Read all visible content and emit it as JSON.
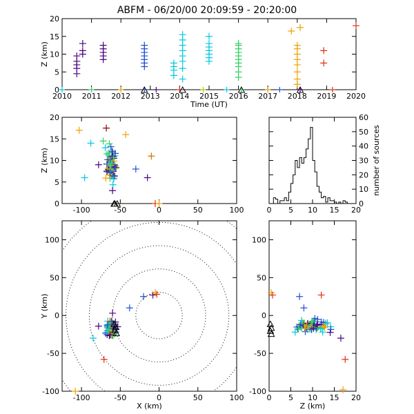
{
  "title": "ABFM - 06/20/00 20:09:59 - 20:20:00",
  "chart_data": [
    {
      "id": "time_height",
      "type": "scatter",
      "xlabel": "Time (UT)",
      "ylabel": "Z (km)",
      "xlim": [
        2010,
        2020
      ],
      "ylim": [
        0,
        20
      ],
      "xticks": [
        2010,
        2011,
        2012,
        2013,
        2014,
        2015,
        2016,
        2017,
        2018,
        2019,
        2020
      ],
      "yticks": [
        0,
        5,
        10,
        15,
        20
      ],
      "series": [
        {
          "color": "#4b0082",
          "points": [
            [
              2010.5,
              4.5
            ],
            [
              2010.5,
              6
            ],
            [
              2010.5,
              7
            ],
            [
              2010.5,
              8
            ],
            [
              2010.5,
              9.5
            ],
            [
              2010.7,
              10
            ],
            [
              2010.7,
              11
            ],
            [
              2010.7,
              13
            ],
            [
              2011.4,
              8.5
            ],
            [
              2011.4,
              9.5
            ],
            [
              2011.4,
              10.5
            ],
            [
              2011.4,
              11.5
            ],
            [
              2011.4,
              12.5
            ]
          ]
        },
        {
          "color": "#2050d0",
          "points": [
            [
              2012.8,
              6.5
            ],
            [
              2012.8,
              7.5
            ],
            [
              2012.8,
              8.5
            ],
            [
              2012.8,
              9.5
            ],
            [
              2012.8,
              10.5
            ],
            [
              2012.8,
              11.5
            ],
            [
              2012.8,
              12.5
            ]
          ]
        },
        {
          "color": "#00c8e0",
          "points": [
            [
              2013.8,
              4
            ],
            [
              2013.8,
              5.5
            ],
            [
              2013.8,
              6.5
            ],
            [
              2013.8,
              7.5
            ],
            [
              2014.1,
              3
            ],
            [
              2014.1,
              6
            ],
            [
              2014.1,
              8
            ],
            [
              2014.1,
              9.5
            ],
            [
              2014.1,
              11
            ],
            [
              2014.1,
              12.5
            ],
            [
              2014.1,
              14
            ],
            [
              2014.1,
              15.5
            ],
            [
              2015,
              8
            ],
            [
              2015,
              9
            ],
            [
              2015,
              10
            ],
            [
              2015,
              11
            ],
            [
              2015,
              12
            ],
            [
              2015,
              13
            ],
            [
              2015,
              15
            ]
          ]
        },
        {
          "color": "#30d060",
          "points": [
            [
              2016,
              3.5
            ],
            [
              2016,
              5
            ],
            [
              2016,
              6.5
            ],
            [
              2016,
              7.5
            ],
            [
              2016,
              8.5
            ],
            [
              2016,
              9.5
            ],
            [
              2016,
              10.5
            ],
            [
              2016,
              11.5
            ],
            [
              2016,
              12.5
            ],
            [
              2016,
              13
            ]
          ]
        },
        {
          "color": "#f0a000",
          "points": [
            [
              2018,
              1.5
            ],
            [
              2018,
              3
            ],
            [
              2018,
              5
            ],
            [
              2018,
              7
            ],
            [
              2018,
              8.5
            ],
            [
              2018,
              10
            ],
            [
              2018,
              11.5
            ],
            [
              2018,
              12.5
            ],
            [
              2017.8,
              16.5
            ],
            [
              2018.1,
              17.5
            ]
          ]
        },
        {
          "color": "#e03010",
          "points": [
            [
              2018.9,
              11
            ],
            [
              2018.9,
              7.5
            ],
            [
              2020,
              18
            ]
          ]
        }
      ],
      "ground": [
        2010,
        2011,
        2012,
        2012.8,
        2013.2,
        2014,
        2014.8,
        2015.6,
        2016.1,
        2017,
        2017.4,
        2018.1,
        2019.2
      ],
      "triangles": [
        2012.8,
        2014.1,
        2016.1,
        2018.1
      ]
    },
    {
      "id": "x_height",
      "type": "scatter",
      "ylabel": "Z (km)",
      "xlim": [
        -125,
        100
      ],
      "ylim": [
        0,
        20
      ],
      "xticks": [
        -100,
        -50,
        0,
        50,
        100
      ],
      "yticks": [
        0,
        5,
        10,
        15,
        20
      ],
      "cluster": {
        "x": [
          -72,
          -52
        ],
        "z": [
          4,
          15
        ],
        "count": 70
      },
      "outliers": [
        {
          "x": -103,
          "z": 17,
          "color": "#f0a000"
        },
        {
          "x": -68,
          "z": 17.5,
          "color": "#8b0000"
        },
        {
          "x": -43,
          "z": 16,
          "color": "#f0a000"
        },
        {
          "x": -88,
          "z": 14,
          "color": "#00c8e0"
        },
        {
          "x": -72,
          "z": 14.5,
          "color": "#30d060"
        },
        {
          "x": -96,
          "z": 6,
          "color": "#00c8e0"
        },
        {
          "x": -10,
          "z": 11,
          "color": "#d07000"
        },
        {
          "x": -30,
          "z": 8,
          "color": "#2050d0"
        },
        {
          "x": -15,
          "z": 6,
          "color": "#4b0082"
        },
        {
          "x": -78,
          "z": 9,
          "color": "#4b0082"
        },
        {
          "x": -60,
          "z": 3,
          "color": "#4b0082"
        },
        {
          "x": -5,
          "z": 0,
          "color": "#e03010"
        },
        {
          "x": 0,
          "z": 0,
          "color": "#f0a000"
        }
      ],
      "triangles": [
        -58,
        -54,
        -57
      ]
    },
    {
      "id": "source_histogram",
      "type": "histogram",
      "ylabel": "number of sources",
      "xlim": [
        0,
        20
      ],
      "ylim": [
        0,
        60
      ],
      "xticks": [
        0,
        5,
        10,
        15,
        20
      ],
      "yticks": [
        0,
        10,
        20,
        30,
        40,
        50,
        60
      ],
      "bin_width": 0.5,
      "counts": [
        0,
        0,
        4,
        3,
        0,
        2,
        2,
        4,
        2,
        8,
        14,
        20,
        30,
        25,
        32,
        28,
        32,
        38,
        45,
        53,
        30,
        22,
        12,
        8,
        4,
        5,
        1,
        4,
        2,
        2,
        1,
        0,
        1,
        0,
        2,
        1,
        0,
        0,
        0,
        0
      ]
    },
    {
      "id": "plan_view",
      "type": "scatter",
      "xlabel": "X (km)",
      "ylabel": "Y (km)",
      "xlim": [
        -125,
        100
      ],
      "ylim": [
        -100,
        125
      ],
      "xticks": [
        -100,
        -50,
        0,
        50,
        100
      ],
      "yticks": [
        -100,
        -50,
        0,
        50,
        100
      ],
      "rings_km": [
        30,
        60,
        90,
        120,
        150
      ],
      "cluster": {
        "x": [
          -72,
          -52
        ],
        "y": [
          -32,
          -2
        ],
        "count": 70
      },
      "outliers": [
        {
          "x": -20,
          "y": 25,
          "color": "#2050d0"
        },
        {
          "x": -8,
          "y": 27,
          "color": "#4b0082"
        },
        {
          "x": -5,
          "y": 30,
          "color": "#f0a000"
        },
        {
          "x": -3,
          "y": 28,
          "color": "#e03010"
        },
        {
          "x": -38,
          "y": 10,
          "color": "#2050d0"
        },
        {
          "x": -60,
          "y": 3,
          "color": "#4b0082"
        },
        {
          "x": -85,
          "y": -30,
          "color": "#00c8e0"
        },
        {
          "x": -78,
          "y": -14,
          "color": "#4b0082"
        },
        {
          "x": -71,
          "y": -58,
          "color": "#e03010"
        },
        {
          "x": -108,
          "y": -100,
          "color": "#f0a000"
        }
      ],
      "triangles": [
        [
          -58,
          -12
        ],
        [
          -56,
          -16
        ],
        [
          -57,
          -20
        ],
        [
          -55,
          -24
        ]
      ]
    },
    {
      "id": "z_y_view",
      "type": "scatter",
      "xlabel": "Z (km)",
      "xlim": [
        0,
        20
      ],
      "ylim": [
        -100,
        125
      ],
      "xticks": [
        0,
        5,
        10,
        15,
        20
      ],
      "yticks": [
        -100,
        -50,
        0,
        50,
        100
      ],
      "cluster": {
        "z": [
          5,
          15
        ],
        "y": [
          -28,
          -2
        ],
        "count": 80
      },
      "outliers": [
        {
          "z": 0.5,
          "y": 30,
          "color": "#f0a000"
        },
        {
          "z": 0.8,
          "y": 27,
          "color": "#e03010"
        },
        {
          "z": 7,
          "y": 25,
          "color": "#2050d0"
        },
        {
          "z": 12,
          "y": 27,
          "color": "#e03010"
        },
        {
          "z": 8,
          "y": 10,
          "color": "#2050d0"
        },
        {
          "z": 17.5,
          "y": -58,
          "color": "#e03010"
        },
        {
          "z": 16.5,
          "y": -30,
          "color": "#4b0082"
        },
        {
          "z": 17,
          "y": -98,
          "color": "#f0a000"
        },
        {
          "z": 6,
          "y": -22,
          "color": "#00c8e0"
        }
      ],
      "triangles": [
        [
          0.3,
          -12
        ],
        [
          0.5,
          -17
        ],
        [
          0.3,
          -21
        ],
        [
          0.5,
          -25
        ]
      ]
    }
  ]
}
